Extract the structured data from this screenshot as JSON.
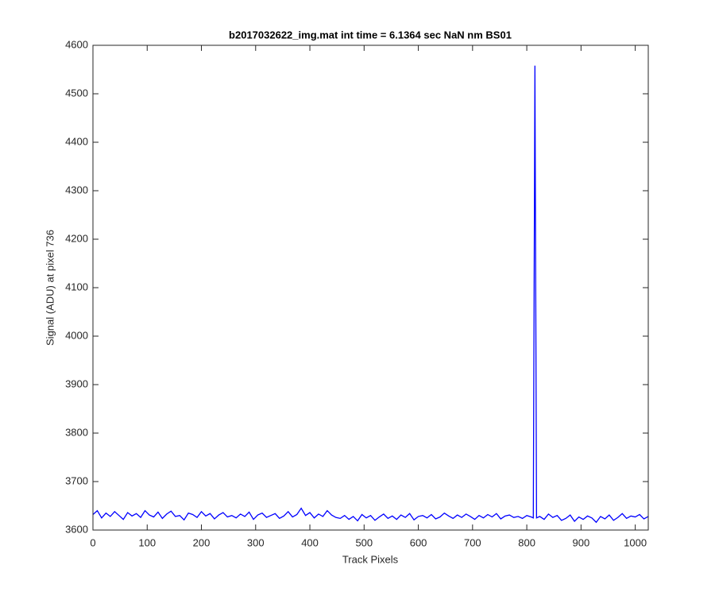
{
  "chart_data": {
    "type": "line",
    "title": "b2017032622_img.mat int time = 6.1364 sec  NaN nm BS01",
    "xlabel": "Track Pixels",
    "ylabel": "Signal (ADU) at pixel 736",
    "x": [
      0,
      8,
      16,
      24,
      32,
      40,
      48,
      56,
      64,
      72,
      80,
      88,
      96,
      104,
      112,
      120,
      128,
      136,
      144,
      152,
      160,
      168,
      176,
      184,
      192,
      200,
      208,
      216,
      224,
      232,
      240,
      248,
      256,
      264,
      272,
      280,
      288,
      296,
      304,
      312,
      320,
      328,
      336,
      344,
      352,
      360,
      368,
      376,
      384,
      392,
      400,
      408,
      416,
      424,
      432,
      440,
      448,
      456,
      464,
      472,
      480,
      488,
      496,
      504,
      512,
      520,
      528,
      536,
      544,
      552,
      560,
      568,
      576,
      584,
      592,
      600,
      608,
      616,
      624,
      632,
      640,
      648,
      656,
      664,
      672,
      680,
      688,
      696,
      704,
      712,
      720,
      728,
      736,
      744,
      752,
      760,
      768,
      776,
      784,
      792,
      800,
      808,
      812,
      815,
      818,
      824,
      832,
      840,
      848,
      856,
      864,
      872,
      880,
      888,
      896,
      904,
      912,
      920,
      928,
      936,
      944,
      952,
      960,
      968,
      976,
      984,
      992,
      1000,
      1008,
      1016,
      1024
    ],
    "series": [
      {
        "name": "signal",
        "color": "#0000ff",
        "values": [
          3632,
          3640,
          3625,
          3635,
          3628,
          3638,
          3630,
          3622,
          3636,
          3629,
          3634,
          3626,
          3640,
          3631,
          3627,
          3637,
          3624,
          3633,
          3639,
          3628,
          3630,
          3621,
          3635,
          3632,
          3626,
          3638,
          3629,
          3634,
          3623,
          3631,
          3636,
          3627,
          3630,
          3625,
          3633,
          3628,
          3637,
          3622,
          3631,
          3635,
          3626,
          3630,
          3634,
          3624,
          3629,
          3638,
          3627,
          3632,
          3645,
          3630,
          3636,
          3625,
          3633,
          3628,
          3640,
          3631,
          3626,
          3624,
          3630,
          3622,
          3628,
          3619,
          3632,
          3625,
          3630,
          3620,
          3627,
          3633,
          3624,
          3629,
          3622,
          3631,
          3626,
          3634,
          3621,
          3628,
          3630,
          3625,
          3632,
          3623,
          3627,
          3635,
          3629,
          3624,
          3631,
          3626,
          3633,
          3628,
          3622,
          3630,
          3625,
          3632,
          3627,
          3634,
          3623,
          3629,
          3631,
          3626,
          3628,
          3624,
          3630,
          3627,
          3625,
          4558,
          3625,
          3628,
          3622,
          3633,
          3626,
          3630,
          3620,
          3624,
          3631,
          3618,
          3627,
          3622,
          3629,
          3625,
          3616,
          3628,
          3623,
          3631,
          3620,
          3626,
          3634,
          3624,
          3629,
          3627,
          3632,
          3623,
          3628
        ]
      }
    ],
    "xlim": [
      0,
      1024
    ],
    "xticks": [
      0,
      100,
      200,
      300,
      400,
      500,
      600,
      700,
      800,
      900,
      1000
    ],
    "ylim": [
      3600,
      4600
    ],
    "yticks": [
      3600,
      3700,
      3800,
      3900,
      4000,
      4100,
      4200,
      4300,
      4400,
      4500,
      4600
    ]
  }
}
